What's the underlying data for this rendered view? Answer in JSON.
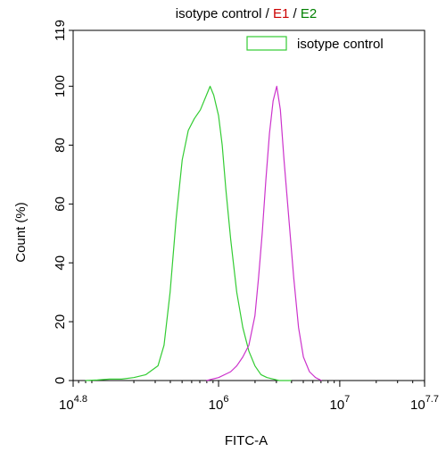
{
  "chart_data": {
    "type": "line",
    "title_parts": [
      {
        "text": "isotype control",
        "color": "#000000"
      },
      {
        "text": " / ",
        "color": "#000000"
      },
      {
        "text": "E1",
        "color": "#cc0000"
      },
      {
        "text": " / ",
        "color": "#000000"
      },
      {
        "text": "E2",
        "color": "#008000"
      }
    ],
    "xlabel": "FITC-A",
    "ylabel": "Count (%)",
    "xscale": "log",
    "xlim_exp": [
      4.8,
      7.7
    ],
    "ylim": [
      0,
      119
    ],
    "x_ticks": [
      {
        "base": "10",
        "exp": "4.8",
        "value": 4.8
      },
      {
        "base": "10",
        "exp": "6",
        "value": 6
      },
      {
        "base": "10",
        "exp": "7",
        "value": 7
      },
      {
        "base": "10",
        "exp": "7.7",
        "value": 7.7
      }
    ],
    "y_ticks": [
      0,
      20,
      40,
      60,
      80,
      100,
      119
    ],
    "legend": {
      "placement": "top-right",
      "entries": [
        {
          "label": "isotype control",
          "color": "#33cc33"
        }
      ]
    },
    "series": [
      {
        "color": "#33cc33",
        "x_log10": [
          4.9,
          5.0,
          5.1,
          5.2,
          5.3,
          5.4,
          5.5,
          5.55,
          5.6,
          5.65,
          5.7,
          5.75,
          5.8,
          5.85,
          5.9,
          5.93,
          5.96,
          6.0,
          6.03,
          6.06,
          6.1,
          6.15,
          6.2,
          6.25,
          6.3,
          6.35,
          6.4,
          6.45,
          6.5,
          6.6
        ],
        "values": [
          0,
          0.2,
          0.5,
          0.5,
          1,
          2,
          5,
          12,
          30,
          55,
          75,
          85,
          89,
          92,
          97,
          100,
          97,
          90,
          80,
          65,
          48,
          30,
          18,
          10,
          5,
          2,
          1,
          0.5,
          0,
          0
        ]
      },
      {
        "color": "#cc33cc",
        "x_log10": [
          5.9,
          6.0,
          6.1,
          6.15,
          6.2,
          6.25,
          6.3,
          6.33,
          6.36,
          6.39,
          6.42,
          6.45,
          6.48,
          6.51,
          6.54,
          6.58,
          6.62,
          6.66,
          6.7,
          6.75,
          6.8,
          6.85
        ],
        "values": [
          0,
          1,
          3,
          5,
          8,
          12,
          22,
          35,
          50,
          68,
          84,
          95,
          100,
          92,
          75,
          55,
          35,
          18,
          8,
          3,
          1,
          0
        ]
      }
    ]
  }
}
